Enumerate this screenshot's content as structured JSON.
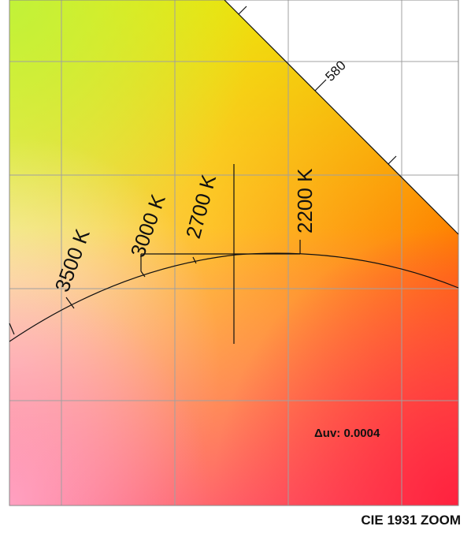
{
  "chart_title": "CIE 1931 ZOOM",
  "delta_uv": "Δuv: 0.0004",
  "spectral_locus": {
    "wavelength_labels": [
      "580"
    ]
  },
  "planckian_locus": {
    "cct_labels": [
      "3500 K",
      "3000 K",
      "2700 K",
      "2200 K"
    ]
  },
  "colors": {
    "gradient_top_left": "#c8f03a",
    "gradient_top_mid": "#f5e000",
    "gradient_right": "#ff7a00",
    "gradient_bottom_right": "#ff2e48",
    "gradient_bottom_left": "#ff9fb6",
    "gradient_mid_left": "#fde6c0",
    "grid": "#a0a0a0",
    "line": "#111111"
  }
}
